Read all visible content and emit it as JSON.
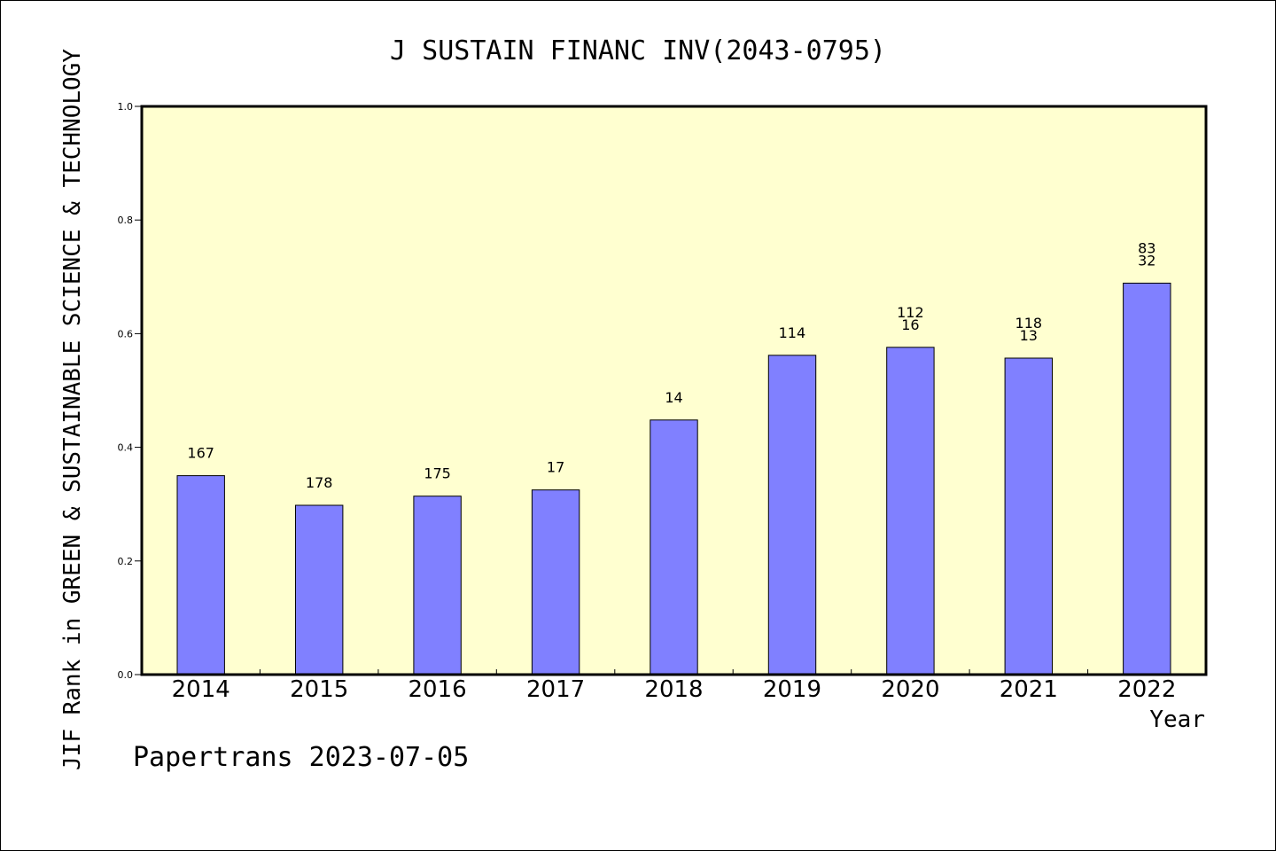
{
  "chart_data": {
    "type": "bar",
    "title": "J SUSTAIN FINANC INV(2043-0795)",
    "xlabel": "Year",
    "ylabel": "JIF Rank in GREEN & SUSTAINABLE SCIENCE & TECHNOLOGY",
    "ylim": [
      0,
      1.0
    ],
    "yticks": [
      "0.0",
      "0.2",
      "0.4",
      "0.6",
      "0.8",
      "1.0"
    ],
    "categories": [
      "2014",
      "2015",
      "2016",
      "2017",
      "2018",
      "2019",
      "2020",
      "2021",
      "2022"
    ],
    "values": [
      0.35,
      0.298,
      0.314,
      0.325,
      0.448,
      0.562,
      0.576,
      0.557,
      0.689
    ],
    "labels": [
      [
        "167"
      ],
      [
        "178"
      ],
      [
        "175"
      ],
      [
        "17"
      ],
      [
        "14"
      ],
      [
        "114"
      ],
      [
        "112",
        "16"
      ],
      [
        "118",
        "13"
      ],
      [
        "83",
        "32"
      ]
    ],
    "grid": false,
    "bar_color": "#8080ff",
    "plot_bg": "#ffffd0"
  },
  "footer": {
    "watermark": "Papertrans 2023-07-05"
  }
}
